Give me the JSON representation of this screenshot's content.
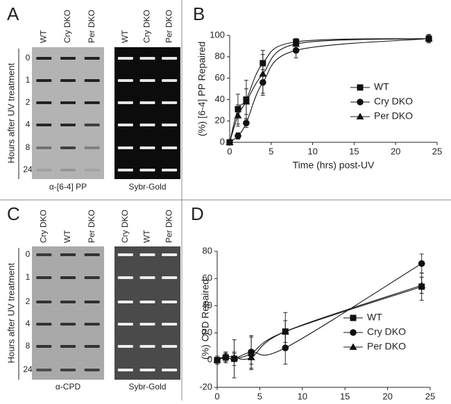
{
  "blots": [
    {
      "panel_label": "A",
      "y_label": "Hours after UV treatment",
      "rows": [
        "0",
        "1",
        "2",
        "4",
        "8",
        "24"
      ],
      "gels": [
        {
          "caption": "α-[6-4] PP",
          "columns": [
            "WT",
            "Cry DKO",
            "Per DKO"
          ]
        },
        {
          "caption": "Sybr-Gold",
          "columns": [
            "WT",
            "Cry DKO",
            "Per DKO"
          ]
        }
      ]
    },
    {
      "panel_label": "C",
      "y_label": "Hours after UV treatment",
      "rows": [
        "0",
        "1",
        "2",
        "4",
        "8",
        "24"
      ],
      "gels": [
        {
          "caption": "α-CPD",
          "columns": [
            "Cry DKO",
            "WT",
            "Per DKO"
          ]
        },
        {
          "caption": "Sybr-Gold",
          "columns": [
            "Cry DKO",
            "WT",
            "Per DKO"
          ]
        }
      ]
    }
  ],
  "chart_data": [
    {
      "type": "line",
      "panel_label": "B",
      "x_label": "Time (hrs) post-UV",
      "y_label": "(%) [6-4] PP Repaired",
      "x": [
        0,
        1,
        2,
        4,
        8,
        24
      ],
      "xlim": [
        0,
        25
      ],
      "xticks": [
        0,
        5,
        10,
        15,
        20,
        25
      ],
      "ylim": [
        0,
        100
      ],
      "yticks": [
        0,
        20,
        40,
        60,
        80,
        100
      ],
      "grid": false,
      "legend": "right",
      "series": [
        {
          "name": "WT",
          "color": "#111111",
          "marker": "square",
          "values": [
            0,
            31,
            40,
            74,
            94,
            97
          ],
          "errors": [
            0,
            14,
            18,
            12,
            3,
            4
          ]
        },
        {
          "name": "Cry DKO",
          "color": "#111111",
          "marker": "circle",
          "values": [
            0,
            6,
            18,
            56,
            86,
            97
          ],
          "errors": [
            0,
            3,
            4,
            12,
            7,
            3
          ]
        },
        {
          "name": "Per DKO",
          "color": "#111111",
          "marker": "triangle",
          "values": [
            0,
            25,
            38,
            64,
            92,
            97
          ],
          "errors": [
            0,
            10,
            12,
            18,
            4,
            3
          ]
        }
      ]
    },
    {
      "type": "line",
      "panel_label": "D",
      "x_label": "Time (hrs) post-UV",
      "y_label": "(%) CPD Repaired",
      "x": [
        0,
        1,
        2,
        4,
        8,
        24
      ],
      "xlim": [
        0,
        25
      ],
      "xticks": [
        0,
        5,
        10,
        15,
        20,
        25
      ],
      "ylim": [
        -20,
        80
      ],
      "yticks": [
        -20,
        0,
        20,
        40,
        60,
        80
      ],
      "grid": false,
      "legend": "right",
      "series": [
        {
          "name": "WT",
          "color": "#111111",
          "marker": "square",
          "values": [
            0,
            2,
            1,
            5,
            21,
            54
          ],
          "errors": [
            3,
            4,
            14,
            12,
            14,
            10
          ]
        },
        {
          "name": "Cry DKO",
          "color": "#111111",
          "marker": "circle",
          "values": [
            0,
            2,
            1,
            6,
            9,
            71
          ],
          "errors": [
            2,
            3,
            5,
            12,
            12,
            7
          ]
        },
        {
          "name": "Per DKO",
          "color": "#111111",
          "marker": "triangle",
          "values": [
            0,
            3,
            2,
            2,
            21,
            55
          ],
          "errors": [
            2,
            3,
            3,
            5,
            8,
            6
          ]
        }
      ]
    }
  ]
}
